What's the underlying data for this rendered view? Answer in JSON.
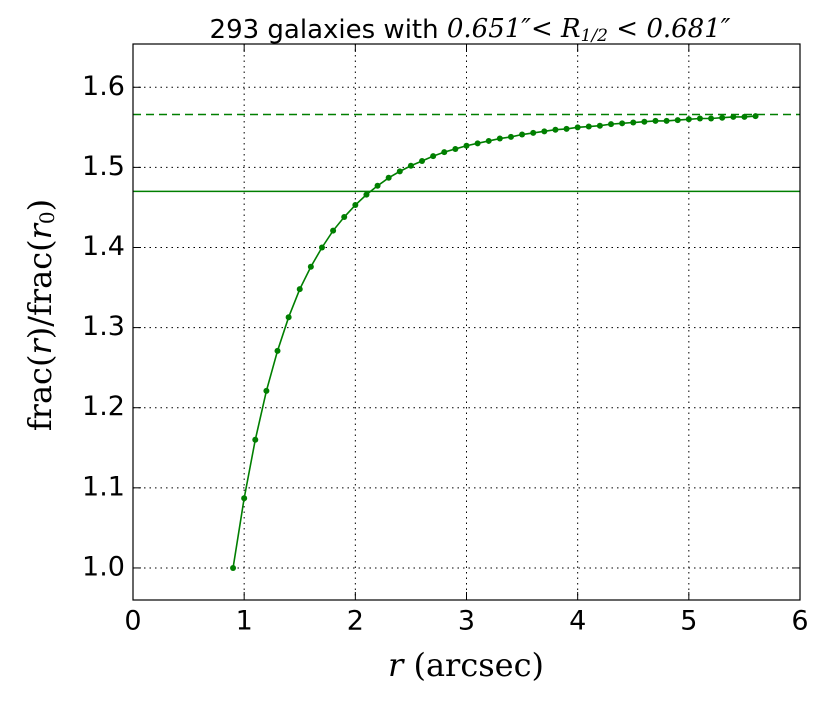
{
  "chart_data": {
    "type": "line",
    "title": {
      "text": "293 galaxies with ",
      "math_start": "0.651″< R",
      "math_sub": "1/2",
      "math_end": " < 0.681″"
    },
    "x_label": {
      "var": "r",
      "unit": " (arcsec)"
    },
    "y_label": {
      "a": "frac(",
      "b": "r",
      "c": ")/frac(",
      "d": "r",
      "e": "0",
      "f": ")"
    },
    "x": [
      0.9,
      1.0,
      1.1,
      1.2,
      1.3,
      1.4,
      1.5,
      1.6,
      1.7,
      1.8,
      1.9,
      2.0,
      2.1,
      2.2,
      2.3,
      2.4,
      2.5,
      2.6,
      2.7,
      2.8,
      2.9,
      3.0,
      3.1,
      3.2,
      3.3,
      3.4,
      3.5,
      3.6,
      3.7,
      3.8,
      3.9,
      4.0,
      4.1,
      4.2,
      4.3,
      4.4,
      4.5,
      4.6,
      4.7,
      4.8,
      4.9,
      5.0,
      5.1,
      5.2,
      5.3,
      5.4,
      5.5,
      5.6
    ],
    "series": [
      {
        "color": "#007f00",
        "values": [
          1.0,
          1.087,
          1.16,
          1.221,
          1.271,
          1.313,
          1.348,
          1.376,
          1.4,
          1.421,
          1.438,
          1.453,
          1.466,
          1.477,
          1.487,
          1.495,
          1.502,
          1.508,
          1.514,
          1.519,
          1.523,
          1.527,
          1.53,
          1.533,
          1.536,
          1.538,
          1.541,
          1.543,
          1.545,
          1.547,
          1.548,
          1.55,
          1.551,
          1.552,
          1.554,
          1.555,
          1.556,
          1.557,
          1.558,
          1.558,
          1.559,
          1.56,
          1.561,
          1.561,
          1.562,
          1.563,
          1.563,
          1.564
        ]
      }
    ],
    "reference_lines": [
      {
        "value": 1.566,
        "style": "dashed",
        "color": "#007f00"
      },
      {
        "value": 1.47,
        "style": "solid",
        "color": "#007f00"
      }
    ],
    "xlim": [
      0,
      6
    ],
    "ylim": [
      0.96,
      1.654
    ],
    "xticks": [
      0,
      1,
      2,
      3,
      4,
      5,
      6
    ],
    "yticks": [
      {
        "value": 1.0,
        "label": "1.0"
      },
      {
        "value": 1.1,
        "label": "1.1"
      },
      {
        "value": 1.2,
        "label": "1.2"
      },
      {
        "value": 1.3,
        "label": "1.3"
      },
      {
        "value": 1.4,
        "label": "1.4"
      },
      {
        "value": 1.5,
        "label": "1.5"
      },
      {
        "value": 1.6,
        "label": "1.6"
      }
    ],
    "grid": true
  }
}
